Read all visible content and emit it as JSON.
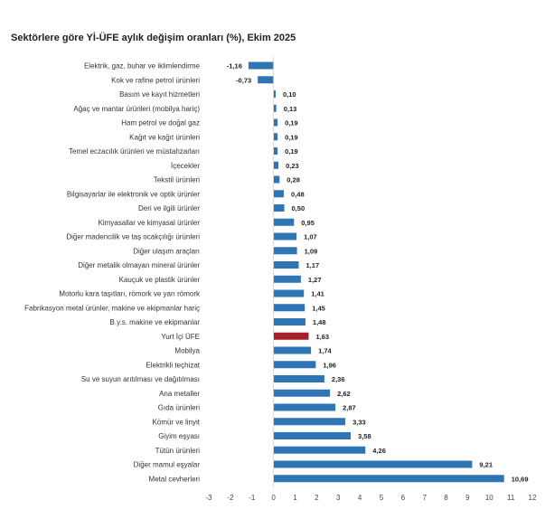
{
  "chart_data": {
    "type": "bar",
    "orientation": "horizontal",
    "title": "Sektörlere göre Yİ-ÜFE aylık değişim oranları (%), Ekim 2025",
    "xlim": [
      -3,
      12
    ],
    "xticks": [
      -3,
      -2,
      -1,
      0,
      1,
      2,
      3,
      4,
      5,
      6,
      7,
      8,
      9,
      10,
      11,
      12
    ],
    "xtick_labels": [
      "-3",
      "-2",
      "-1",
      "0",
      "1",
      "2",
      "3",
      "4",
      "5",
      "6",
      "7",
      "8",
      "9",
      "10",
      "11",
      "12"
    ],
    "grid": false,
    "colors": {
      "default": "#2e75b6",
      "highlight": "#a6202a"
    },
    "highlight": "Yurt İçi ÜFE",
    "categories": [
      "Elektrik, gaz, buhar ve iklimlendirme",
      "Kok ve rafine petrol ürünleri",
      "Basım ve kayıt hizmetleri",
      "Ağaç ve mantar ürünleri (mobilya hariç)",
      "Ham petrol ve doğal gaz",
      "Kağıt ve kağıt ürünleri",
      "Temel eczacılık ürünleri ve müstahzarları",
      "İçecekler",
      "Tekstil ürünleri",
      "Bilgisayarlar ile elektronik ve optik ürünler",
      "Deri ve ilgili ürünler",
      "Kimyasallar ve kimyasal ürünler",
      "Diğer madencilik ve taş ocakçılığı ürünleri",
      "Diğer ulaşım araçları",
      "Diğer metalik olmayan mineral ürünler",
      "Kauçuk ve plastik ürünler",
      "Motorlu kara taşıtları, römork ve yarı römork",
      "Fabrikasyon metal ürünler, makine ve ekipmanlar hariç",
      "B.y.s. makine ve ekipmanlar",
      "Yurt İçi ÜFE",
      "Mobilya",
      "Elektrikli teçhizat",
      "Su ve suyun arıtılması ve dağıtılması",
      "Ana metaller",
      "Gıda ürünleri",
      "Kömür ve linyit",
      "Giyim eşyası",
      "Tütün ürünleri",
      "Diğer mamul eşyalar",
      "Metal cevherleri"
    ],
    "values": [
      -1.16,
      -0.73,
      0.1,
      0.13,
      0.19,
      0.19,
      0.19,
      0.23,
      0.28,
      0.48,
      0.5,
      0.95,
      1.07,
      1.09,
      1.17,
      1.27,
      1.41,
      1.45,
      1.48,
      1.63,
      1.74,
      1.96,
      2.36,
      2.62,
      2.87,
      3.33,
      3.58,
      4.26,
      9.21,
      10.69
    ],
    "value_labels": [
      "-1,16",
      "-0,73",
      "0,10",
      "0,13",
      "0,19",
      "0,19",
      "0,19",
      "0,23",
      "0,28",
      "0,48",
      "0,50",
      "0,95",
      "1,07",
      "1,09",
      "1,17",
      "1,27",
      "1,41",
      "1,45",
      "1,48",
      "1,63",
      "1,74",
      "1,96",
      "2,36",
      "2,62",
      "2,87",
      "3,33",
      "3,58",
      "4,26",
      "9,21",
      "10,69"
    ]
  }
}
